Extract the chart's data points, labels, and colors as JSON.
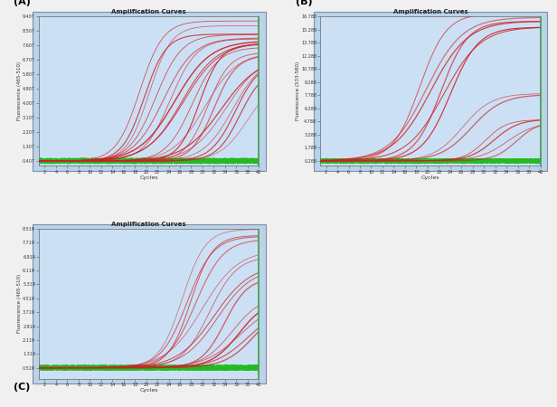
{
  "title": "Amplification Curves",
  "xlabel": "Cycles",
  "panel_A": {
    "ylabel": "Fluorescence (465-510)",
    "ylim": [
      0.107,
      9.407
    ],
    "yticks": [
      0.407,
      1.307,
      2.207,
      3.107,
      4.007,
      4.907,
      5.807,
      6.707,
      7.607,
      8.507,
      9.407
    ],
    "xlim": [
      1,
      40
    ],
    "xticks": [
      2,
      4,
      6,
      8,
      10,
      12,
      14,
      16,
      18,
      20,
      22,
      24,
      26,
      28,
      30,
      32,
      34,
      36,
      38,
      40
    ],
    "num_red": 20,
    "midpoints": [
      19,
      20,
      21,
      22,
      23,
      24,
      25,
      26,
      27,
      28,
      29,
      30,
      31,
      32,
      33,
      34,
      35,
      36,
      37,
      38
    ],
    "plateau": [
      8.8,
      8.6,
      8.5,
      8.4,
      8.3,
      8.2,
      8.1,
      7.9,
      7.8,
      7.6,
      7.5,
      7.4,
      7.3,
      7.2,
      7.0,
      6.9,
      6.8,
      6.5,
      6.0,
      5.5
    ],
    "baseline": 0.407,
    "num_green_flat": 8,
    "green_line_x": 40
  },
  "panel_B": {
    "ylabel": "Fluorescence (533-580)",
    "ylim": [
      -0.3,
      16.788
    ],
    "yticks": [
      0.288,
      1.788,
      3.288,
      4.788,
      6.288,
      7.788,
      9.288,
      10.788,
      12.288,
      13.788,
      15.288,
      16.788
    ],
    "xlim": [
      1,
      40
    ],
    "xticks": [
      2,
      4,
      6,
      8,
      10,
      12,
      14,
      16,
      18,
      20,
      22,
      24,
      26,
      28,
      30,
      32,
      34,
      36,
      38,
      40
    ],
    "num_red": 12,
    "midpoints": [
      19,
      20,
      21,
      22,
      23,
      24,
      26,
      28,
      30,
      32,
      34,
      36
    ],
    "plateau": [
      16.5,
      16.2,
      15.9,
      15.6,
      15.4,
      15.2,
      7.8,
      7.6,
      5.0,
      4.9,
      4.8,
      4.7
    ],
    "baseline": 0.288,
    "num_green_flat": 10,
    "green_line_x": 40
  },
  "panel_C": {
    "ylabel": "Fluorescence (465-510)",
    "ylim": [
      -0.1,
      8.519
    ],
    "yticks": [
      0.519,
      1.319,
      2.119,
      2.919,
      3.719,
      4.519,
      5.319,
      6.119,
      6.919,
      7.719,
      8.519
    ],
    "xlim": [
      1,
      40
    ],
    "xticks": [
      2,
      4,
      6,
      8,
      10,
      12,
      14,
      16,
      18,
      20,
      22,
      24,
      26,
      28,
      30,
      32,
      34,
      36,
      38,
      40
    ],
    "num_red": 14,
    "midpoints": [
      26,
      27,
      28,
      29,
      30,
      31,
      32,
      33,
      34,
      35,
      36,
      37,
      38,
      39
    ],
    "plateau": [
      8.4,
      8.2,
      8.0,
      7.8,
      7.5,
      7.2,
      6.5,
      6.2,
      5.5,
      4.8,
      4.5,
      4.3,
      4.1,
      4.0
    ],
    "baseline": 0.519,
    "num_green_flat": 12,
    "green_line_x": 40
  },
  "fig_bg_color": "#f0f0f0",
  "panel_outer_color": "#b8d4e8",
  "plot_bg_color": "#cce0f5",
  "red_color": "#cc2222",
  "green_color": "#22bb22",
  "label_A": "(A)",
  "label_B": "(B)",
  "label_C": "(C)"
}
